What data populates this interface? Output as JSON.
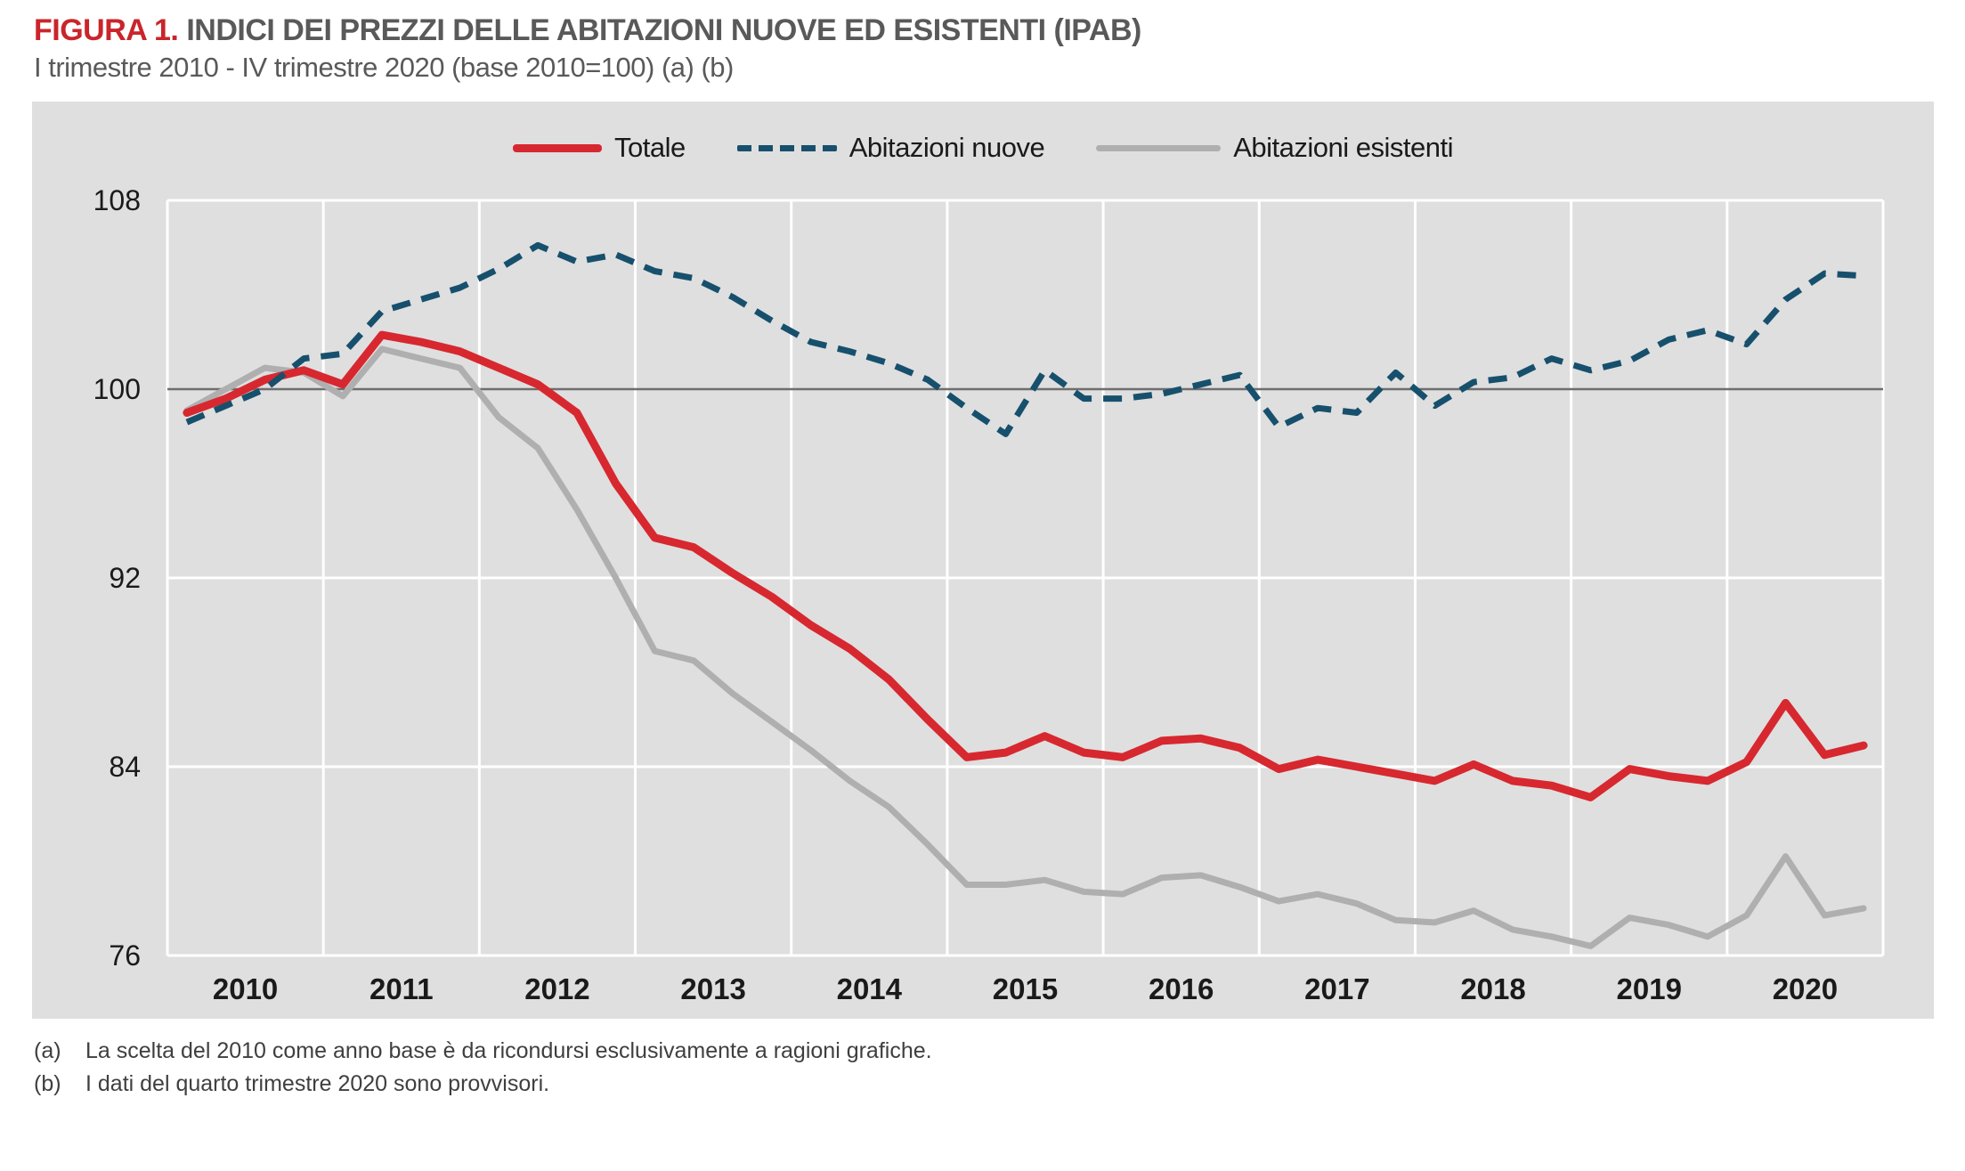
{
  "header": {
    "figure_label": "FIGURA 1.",
    "title": "INDICI DEI PREZZI DELLE ABITAZIONI NUOVE ED ESISTENTI (IPAB)",
    "subtitle": "I trimestre 2010 - IV trimestre 2020 (base 2010=100) (a) (b)"
  },
  "colors": {
    "page-bg": "#ffffff",
    "panel-bg": "#dfdfdf",
    "grid-white": "#ffffff",
    "baseline": "#6e6e6e",
    "title-red": "#c9252b",
    "title-gray": "#595959",
    "text-dark": "#1a1a1a",
    "footnote": "#3f3f3f"
  },
  "footnotes": [
    {
      "marker": "(a)",
      "text": "La scelta del 2010 come anno base è da ricondursi esclusivamente a ragioni grafiche."
    },
    {
      "marker": "(b)",
      "text": "I dati del quarto trimestre 2020 sono provvisori."
    }
  ],
  "chart_data": {
    "type": "line",
    "title": "Indici dei prezzi delle abitazioni nuove ed esistenti (IPAB)",
    "x_unit": "quarter",
    "years": [
      2010,
      2011,
      2012,
      2013,
      2014,
      2015,
      2016,
      2017,
      2018,
      2019,
      2020
    ],
    "quarters_per_year": 4,
    "ylim": [
      76,
      108
    ],
    "yticks": [
      76,
      84,
      92,
      100,
      108
    ],
    "baseline": 100,
    "grid": "white vertical year-boundaries and horizontal tick lines on gray panel; dark rule at 100",
    "legend_position": "top-center",
    "series": [
      {
        "name": "Totale",
        "color": "#d7282f",
        "style": "solid",
        "width": 9,
        "values": [
          99.0,
          99.6,
          100.4,
          100.8,
          100.2,
          102.3,
          102.0,
          101.6,
          100.9,
          100.2,
          99.0,
          96.0,
          93.7,
          93.3,
          92.2,
          91.2,
          90.0,
          89.0,
          87.7,
          86.0,
          84.4,
          84.6,
          85.3,
          84.6,
          84.4,
          85.1,
          85.2,
          84.8,
          83.9,
          84.3,
          84.0,
          83.7,
          83.4,
          84.1,
          83.4,
          83.2,
          82.7,
          83.9,
          83.6,
          83.4,
          84.2,
          86.7,
          84.5,
          84.9
        ]
      },
      {
        "name": "Abitazioni nuove",
        "color": "#17506d",
        "style": "dashed",
        "width": 7,
        "values": [
          98.6,
          99.3,
          100.0,
          101.3,
          101.5,
          103.3,
          103.8,
          104.3,
          105.1,
          106.1,
          105.4,
          105.7,
          105.0,
          104.7,
          103.9,
          102.9,
          102.0,
          101.6,
          101.1,
          100.4,
          99.2,
          98.1,
          100.8,
          99.6,
          99.6,
          99.8,
          100.2,
          100.6,
          98.4,
          99.2,
          99.0,
          100.7,
          99.3,
          100.3,
          100.5,
          101.3,
          100.8,
          101.2,
          102.1,
          102.5,
          101.9,
          103.8,
          104.9,
          104.8
        ]
      },
      {
        "name": "Abitazioni esistenti",
        "color": "#afafb0",
        "style": "solid",
        "width": 7,
        "values": [
          99.1,
          100.0,
          100.9,
          100.7,
          99.7,
          101.7,
          101.3,
          100.9,
          98.8,
          97.5,
          94.9,
          92.0,
          88.9,
          88.5,
          87.1,
          85.9,
          84.7,
          83.4,
          82.3,
          80.7,
          79.0,
          79.0,
          79.2,
          78.7,
          78.6,
          79.3,
          79.4,
          78.9,
          78.3,
          78.6,
          78.2,
          77.5,
          77.4,
          77.9,
          77.1,
          76.8,
          76.4,
          77.6,
          77.3,
          76.8,
          77.7,
          80.2,
          77.7,
          78.0
        ]
      }
    ]
  }
}
